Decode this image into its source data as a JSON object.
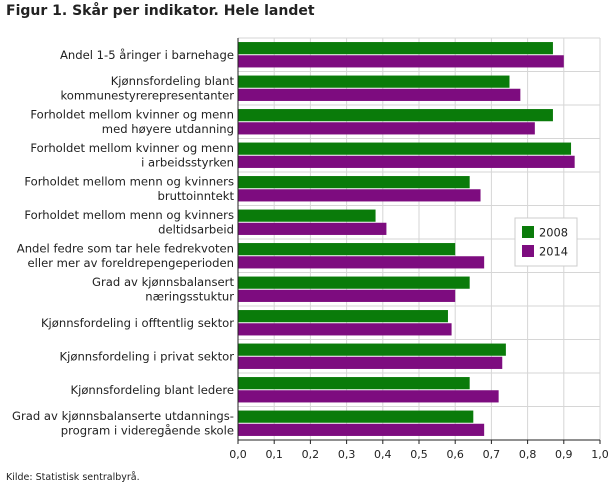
{
  "title": "Figur 1. Skår per indikator. Hele landet",
  "source": "Kilde: Statistisk sentralbyrå.",
  "chart_data": {
    "type": "bar",
    "orientation": "horizontal",
    "title": "Figur 1. Skår per indikator. Hele landet",
    "xlabel": "",
    "ylabel": "",
    "xlim": [
      0,
      1.0
    ],
    "x_ticks": [
      "0,0",
      "0,1",
      "0,2",
      "0,3",
      "0,4",
      "0,5",
      "0,6",
      "0,7",
      "0,8",
      "0,9",
      "1,0"
    ],
    "grid": true,
    "legend_position": "right",
    "categories": [
      [
        "Andel 1-5 åringer i barnehage"
      ],
      [
        "Kjønnsfordeling blant",
        "kommunestyrerepresentanter"
      ],
      [
        "Forholdet mellom kvinner og menn",
        "med høyere utdanning"
      ],
      [
        "Forholdet mellom kvinner og menn",
        "i arbeidsstyrken"
      ],
      [
        "Forholdet mellom menn og kvinners",
        "bruttoinntekt"
      ],
      [
        "Forholdet mellom menn og kvinners",
        "deltidsarbeid"
      ],
      [
        "Andel fedre som tar hele fedrekvoten",
        "eller mer av foreldrepengeperioden"
      ],
      [
        "Grad av kjønnsbalansert",
        "næringsstuktur"
      ],
      [
        "Kjønnsfordeling i offtentlig sektor"
      ],
      [
        "Kjønnsfordeling i privat sektor"
      ],
      [
        "Kjønnsfordeling blant ledere"
      ],
      [
        "Grad av kjønnsbalanserte utdannings-",
        "program i videregående skole"
      ]
    ],
    "series": [
      {
        "name": "2008",
        "color": "#0a7b0a",
        "values": [
          0.87,
          0.75,
          0.87,
          0.92,
          0.64,
          0.38,
          0.6,
          0.64,
          0.58,
          0.74,
          0.64,
          0.65
        ]
      },
      {
        "name": "2014",
        "color": "#7d0c7f",
        "values": [
          0.9,
          0.78,
          0.82,
          0.93,
          0.67,
          0.41,
          0.68,
          0.6,
          0.59,
          0.73,
          0.72,
          0.68
        ]
      }
    ]
  }
}
